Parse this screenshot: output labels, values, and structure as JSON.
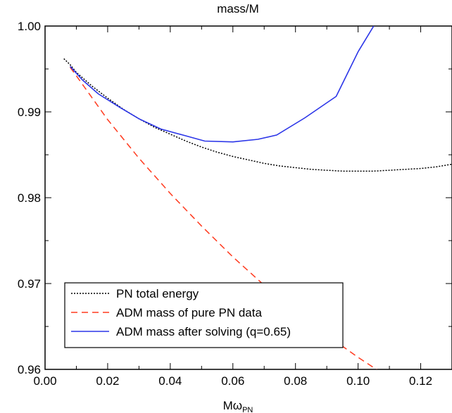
{
  "chart_data": {
    "type": "line",
    "title": "mass/M",
    "xlabel": "Mω",
    "xlabel_subscript": "PN",
    "ylabel": "",
    "xlim": [
      0.0,
      0.13
    ],
    "ylim": [
      0.96,
      1.0
    ],
    "x_ticks": [
      0.0,
      0.02,
      0.04,
      0.06,
      0.08,
      0.1,
      0.12
    ],
    "x_tick_labels": [
      "0.00",
      "0.02",
      "0.04",
      "0.06",
      "0.08",
      "0.10",
      "0.12"
    ],
    "y_ticks": [
      0.96,
      0.97,
      0.98,
      0.99,
      1.0
    ],
    "y_tick_labels": [
      "0.96",
      "0.97",
      "0.98",
      "0.99",
      "1.00"
    ],
    "grid": false,
    "legend_position": "bottom-left",
    "series": [
      {
        "name": "PN total energy",
        "color": "#000000",
        "style": "dotted",
        "x": [
          0.006,
          0.008,
          0.01,
          0.015,
          0.02,
          0.025,
          0.03,
          0.035,
          0.04,
          0.045,
          0.05,
          0.055,
          0.06,
          0.065,
          0.07,
          0.075,
          0.08,
          0.085,
          0.09,
          0.095,
          0.1,
          0.105,
          0.11,
          0.115,
          0.12,
          0.125,
          0.13
        ],
        "y": [
          0.9962,
          0.9955,
          0.9946,
          0.993,
          0.9916,
          0.9903,
          0.9892,
          0.9882,
          0.9874,
          0.9866,
          0.9859,
          0.9853,
          0.9848,
          0.9844,
          0.984,
          0.9837,
          0.9835,
          0.9833,
          0.9832,
          0.9831,
          0.9831,
          0.9831,
          0.9832,
          0.9833,
          0.9834,
          0.9836,
          0.9839
        ]
      },
      {
        "name": "ADM mass of pure PN data",
        "color": "#ff3a1e",
        "style": "dashed",
        "x": [
          0.008,
          0.01,
          0.02,
          0.03,
          0.04,
          0.05,
          0.06,
          0.07,
          0.08,
          0.09,
          0.1,
          0.11,
          0.12,
          0.127
        ],
        "y": [
          0.9952,
          0.9942,
          0.9891,
          0.9846,
          0.9805,
          0.9767,
          0.9731,
          0.9698,
          0.9668,
          0.964,
          0.9614,
          0.959,
          0.9567,
          0.9552
        ]
      },
      {
        "name": "ADM mass after solving (q=0.65)",
        "color": "#2b35e8",
        "style": "solid",
        "x": [
          0.008,
          0.012,
          0.017,
          0.024,
          0.03,
          0.037,
          0.044,
          0.051,
          0.06,
          0.068,
          0.074,
          0.083,
          0.093,
          0.1,
          0.105
        ],
        "y": [
          0.9953,
          0.9937,
          0.9921,
          0.9905,
          0.9892,
          0.988,
          0.9873,
          0.9866,
          0.9865,
          0.9868,
          0.9873,
          0.9893,
          0.9918,
          0.997,
          1.0
        ]
      }
    ]
  }
}
